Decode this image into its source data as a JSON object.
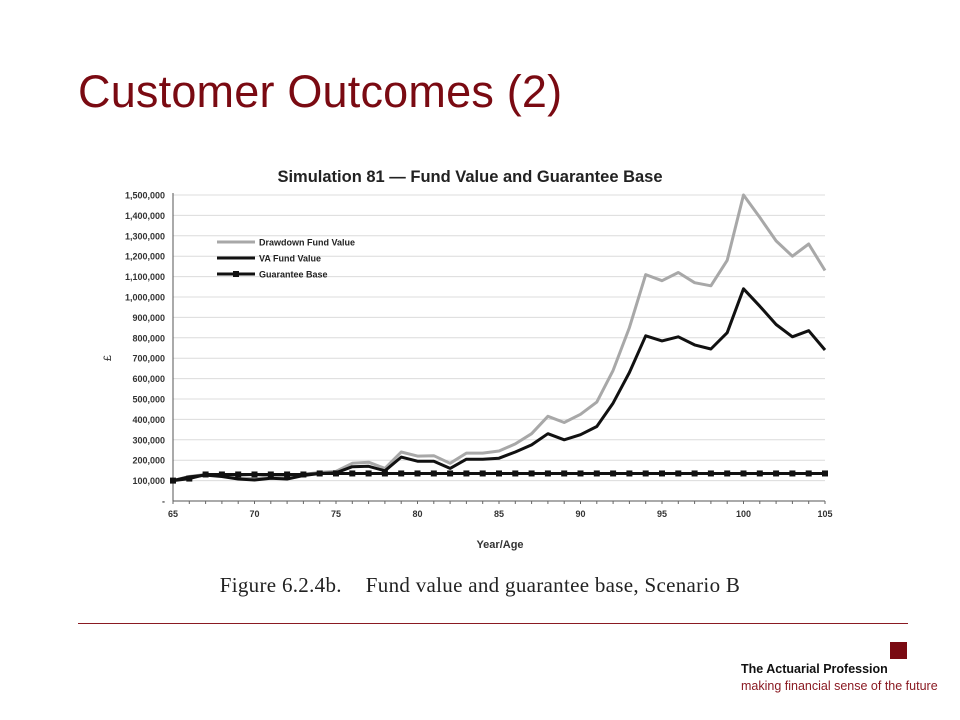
{
  "slide": {
    "title": "Customer Outcomes (2)",
    "caption_figure": "Figure 6.2.4b.",
    "caption_text": "Fund value and guarantee base, Scenario B",
    "org_name": "The Actuarial Profession",
    "org_tagline": "making financial sense of the future"
  },
  "colors": {
    "title": "#7a0a12",
    "accent": "#8a1a22",
    "drawdown": "#a8a8a8",
    "va_fund": "#111111",
    "guarantee": "#111111"
  },
  "chart_data": {
    "type": "line",
    "title": "Simulation 81 — Fund Value and Guarantee Base",
    "xlabel": "Year/Age",
    "ylabel": "£",
    "x": [
      65,
      66,
      67,
      68,
      69,
      70,
      71,
      72,
      73,
      74,
      75,
      76,
      77,
      78,
      79,
      80,
      81,
      82,
      83,
      84,
      85,
      86,
      87,
      88,
      89,
      90,
      91,
      92,
      93,
      94,
      95,
      96,
      97,
      98,
      99,
      100,
      101,
      102,
      103,
      104,
      105
    ],
    "xlim": [
      65,
      105
    ],
    "ylim": [
      0,
      1500000
    ],
    "x_ticks": [
      65,
      70,
      75,
      80,
      85,
      90,
      95,
      100,
      105
    ],
    "y_ticks": [
      0,
      100000,
      200000,
      300000,
      400000,
      500000,
      600000,
      700000,
      800000,
      900000,
      1000000,
      1100000,
      1200000,
      1300000,
      1400000,
      1500000
    ],
    "y_tick_labels": [
      "-",
      "100,000",
      "200,000",
      "300,000",
      "400,000",
      "500,000",
      "600,000",
      "700,000",
      "800,000",
      "900,000",
      "1,000,000",
      "1,100,000",
      "1,200,000",
      "1,300,000",
      "1,400,000",
      "1,500,000"
    ],
    "grid": "horizontal",
    "legend_position": "upper-left",
    "series": [
      {
        "name": "Drawdown Fund Value",
        "color": "#a8a8a8",
        "marker": "none",
        "values": [
          100000,
          120000,
          130000,
          125000,
          115000,
          110000,
          120000,
          115000,
          130000,
          140000,
          145000,
          185000,
          190000,
          160000,
          240000,
          220000,
          222000,
          185000,
          235000,
          235000,
          245000,
          280000,
          330000,
          415000,
          385000,
          425000,
          485000,
          640000,
          850000,
          1110000,
          1080000,
          1120000,
          1070000,
          1055000,
          1180000,
          1500000,
          1390000,
          1275000,
          1200000,
          1260000,
          1130000
        ]
      },
      {
        "name": "VA Fund Value",
        "color": "#111111",
        "marker": "none",
        "values": [
          100000,
          118000,
          127000,
          120000,
          108000,
          103000,
          112000,
          108000,
          125000,
          135000,
          138000,
          168000,
          170000,
          148000,
          215000,
          195000,
          195000,
          160000,
          205000,
          205000,
          210000,
          240000,
          275000,
          330000,
          300000,
          325000,
          365000,
          480000,
          630000,
          810000,
          785000,
          805000,
          765000,
          745000,
          825000,
          1040000,
          955000,
          865000,
          805000,
          835000,
          740000
        ]
      },
      {
        "name": "Guarantee Base",
        "color": "#111111",
        "marker": "square",
        "values": [
          100000,
          110000,
          130000,
          130000,
          130000,
          130000,
          130000,
          130000,
          130000,
          135000,
          135000,
          135000,
          135000,
          135000,
          135000,
          135000,
          135000,
          135000,
          135000,
          135000,
          135000,
          135000,
          135000,
          135000,
          135000,
          135000,
          135000,
          135000,
          135000,
          135000,
          135000,
          135000,
          135000,
          135000,
          135000,
          135000,
          135000,
          135000,
          135000,
          135000,
          135000
        ]
      }
    ]
  }
}
